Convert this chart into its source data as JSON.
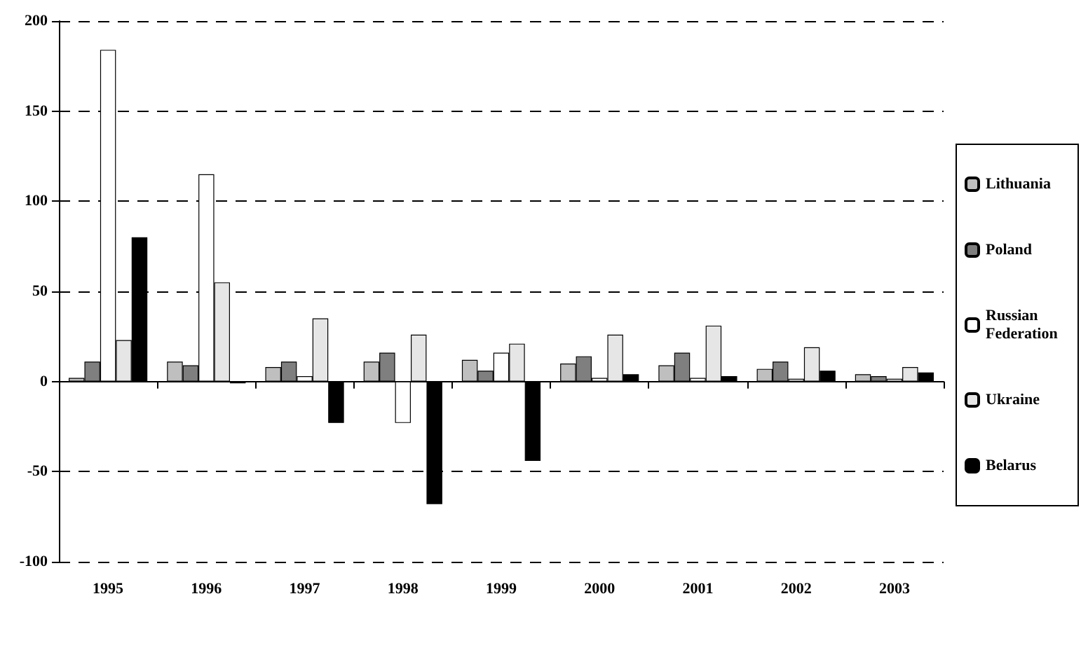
{
  "chart_data": {
    "type": "bar",
    "categories": [
      "1995",
      "1996",
      "1997",
      "1998",
      "1999",
      "2000",
      "2001",
      "2002",
      "2003"
    ],
    "series": [
      {
        "name": "Lithuania",
        "color": "#bfbfbf",
        "values": [
          2,
          11,
          8,
          11,
          12,
          10,
          9,
          7,
          4
        ]
      },
      {
        "name": "Poland",
        "color": "#7f7f7f",
        "values": [
          11,
          9,
          11,
          16,
          6,
          14,
          16,
          11,
          3
        ]
      },
      {
        "name": "Russian Federation",
        "color": "#ffffff",
        "values": [
          184,
          115,
          3,
          -23,
          16,
          2,
          2,
          1.5,
          1.5
        ]
      },
      {
        "name": "Ukraine",
        "color": "#e6e6e6",
        "values": [
          23,
          55,
          35,
          26,
          21,
          26,
          31,
          19,
          8
        ]
      },
      {
        "name": "Belarus",
        "color": "#000000",
        "values": [
          80,
          -1,
          -23,
          -68,
          -44,
          4,
          3,
          6,
          5
        ]
      }
    ],
    "ylim": [
      -100,
      200
    ],
    "yticks": [
      -100,
      -50,
      0,
      50,
      100,
      150,
      200
    ],
    "grid": "y",
    "legend": "right"
  }
}
